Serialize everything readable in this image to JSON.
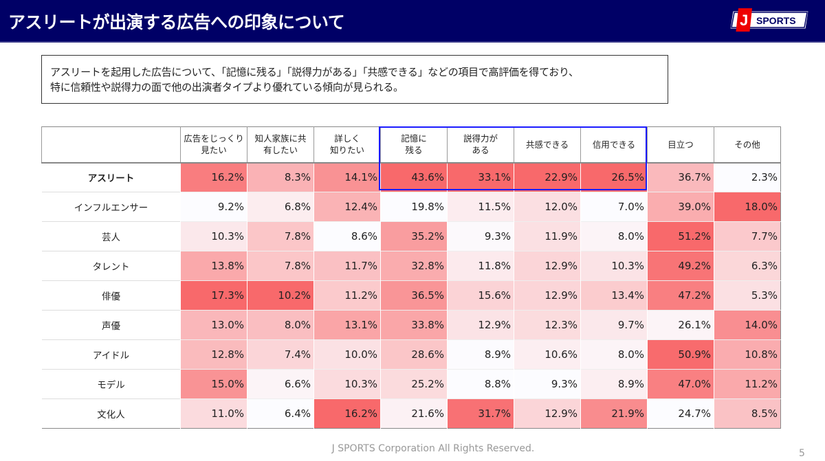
{
  "header": {
    "title": "アスリートが出演する広告への印象について",
    "logo_text": "SPORTS",
    "logo_letter": "J"
  },
  "summary": {
    "line1": "アスリートを起用した広告について、「記憶に残る」「説得力がある」「共感できる」などの項目で高評価を得ており、",
    "line2": "特に信頼性や説得力の面で他の出演者タイプより優れている傾向が見られる。"
  },
  "colors": {
    "header_bg": "#000066",
    "heat_max": "#F8696B",
    "heat_min": "#FCFCFF",
    "highlight": "#1A1AFF"
  },
  "table": {
    "columns": [
      [
        "広告をじっくり",
        "見たい"
      ],
      [
        "知人家族に共",
        "有したい"
      ],
      [
        "詳しく",
        "知りたい"
      ],
      [
        "記憶に",
        "残る"
      ],
      [
        "説得力が",
        "ある"
      ],
      [
        "共感できる"
      ],
      [
        "信用できる"
      ],
      [
        "目立つ"
      ],
      [
        "その他"
      ]
    ],
    "rows": [
      {
        "label": "アスリート",
        "values": [
          "16.2%",
          "8.3%",
          "14.1%",
          "43.6%",
          "33.1%",
          "22.9%",
          "26.5%",
          "36.7%",
          "2.3%"
        ]
      },
      {
        "label": "インフルエンサー",
        "values": [
          "9.2%",
          "6.8%",
          "12.4%",
          "19.8%",
          "11.5%",
          "12.0%",
          "7.0%",
          "39.0%",
          "18.0%"
        ]
      },
      {
        "label": "芸人",
        "values": [
          "10.3%",
          "7.8%",
          "8.6%",
          "35.2%",
          "9.3%",
          "11.9%",
          "8.0%",
          "51.2%",
          "7.7%"
        ]
      },
      {
        "label": "タレント",
        "values": [
          "13.8%",
          "7.8%",
          "11.7%",
          "32.8%",
          "11.8%",
          "12.9%",
          "10.3%",
          "49.2%",
          "6.3%"
        ]
      },
      {
        "label": "俳優",
        "values": [
          "17.3%",
          "10.2%",
          "11.2%",
          "36.5%",
          "15.6%",
          "12.9%",
          "13.4%",
          "47.2%",
          "5.3%"
        ]
      },
      {
        "label": "声優",
        "values": [
          "13.0%",
          "8.0%",
          "13.1%",
          "33.8%",
          "12.9%",
          "12.3%",
          "9.7%",
          "26.1%",
          "14.0%"
        ]
      },
      {
        "label": "アイドル",
        "values": [
          "12.8%",
          "7.4%",
          "10.0%",
          "28.6%",
          "8.9%",
          "10.6%",
          "8.0%",
          "50.9%",
          "10.8%"
        ]
      },
      {
        "label": "モデル",
        "values": [
          "15.0%",
          "6.6%",
          "10.3%",
          "25.2%",
          "8.8%",
          "9.3%",
          "8.9%",
          "47.0%",
          "11.2%"
        ]
      },
      {
        "label": "文化人",
        "values": [
          "11.0%",
          "6.4%",
          "16.2%",
          "21.6%",
          "31.7%",
          "12.9%",
          "21.9%",
          "24.7%",
          "8.5%"
        ]
      }
    ]
  },
  "footer": {
    "copyright": "J SPORTS Corporation All Rights Reserved.",
    "page": "5"
  }
}
